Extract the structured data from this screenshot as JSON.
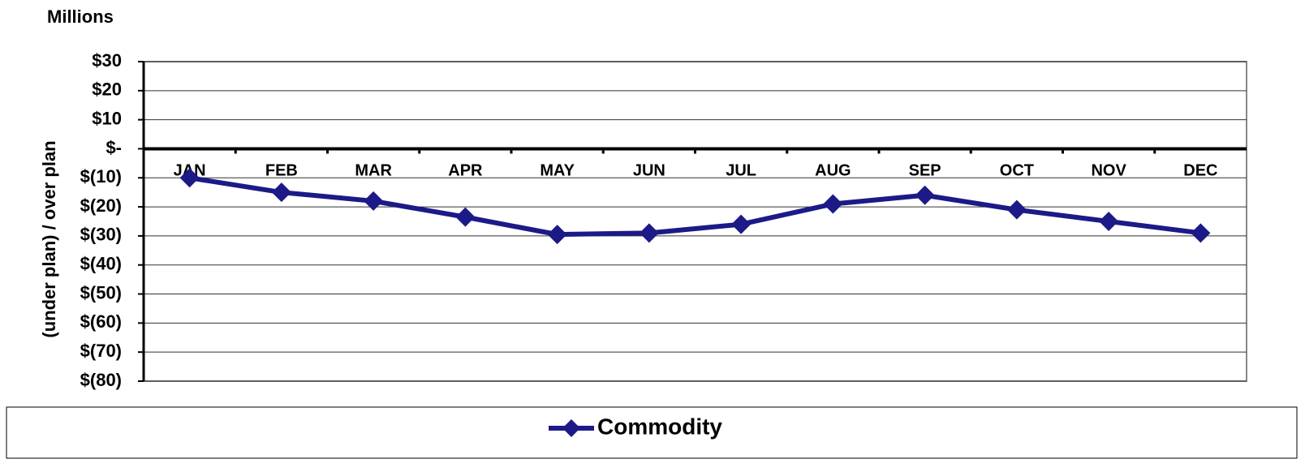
{
  "chart_data": {
    "type": "line",
    "subtitle": "Millions",
    "y_label": "(under plan) / over plan",
    "categories": [
      "JAN",
      "FEB",
      "MAR",
      "APR",
      "MAY",
      "JUN",
      "JUL",
      "AUG",
      "SEP",
      "OCT",
      "NOV",
      "DEC"
    ],
    "series": [
      {
        "name": "Commodity",
        "color": "#1c1a87",
        "values": [
          -10,
          -15,
          -18,
          -23.5,
          -29.5,
          -29,
          -26,
          -19,
          -16,
          -21,
          -25,
          -29
        ]
      }
    ],
    "ylim": [
      -80,
      30
    ],
    "yticks": [
      {
        "value": 30,
        "label": "$30"
      },
      {
        "value": 20,
        "label": "$20"
      },
      {
        "value": 10,
        "label": "$10"
      },
      {
        "value": 0,
        "label": "$-"
      },
      {
        "value": -10,
        "label": "$(10)"
      },
      {
        "value": -20,
        "label": "$(20)"
      },
      {
        "value": -30,
        "label": "$(30)"
      },
      {
        "value": -40,
        "label": "$(40)"
      },
      {
        "value": -50,
        "label": "$(50)"
      },
      {
        "value": -60,
        "label": "$(60)"
      },
      {
        "value": -70,
        "label": "$(70)"
      },
      {
        "value": -80,
        "label": "$(80)"
      }
    ],
    "grid": true,
    "legend": "bottom"
  }
}
